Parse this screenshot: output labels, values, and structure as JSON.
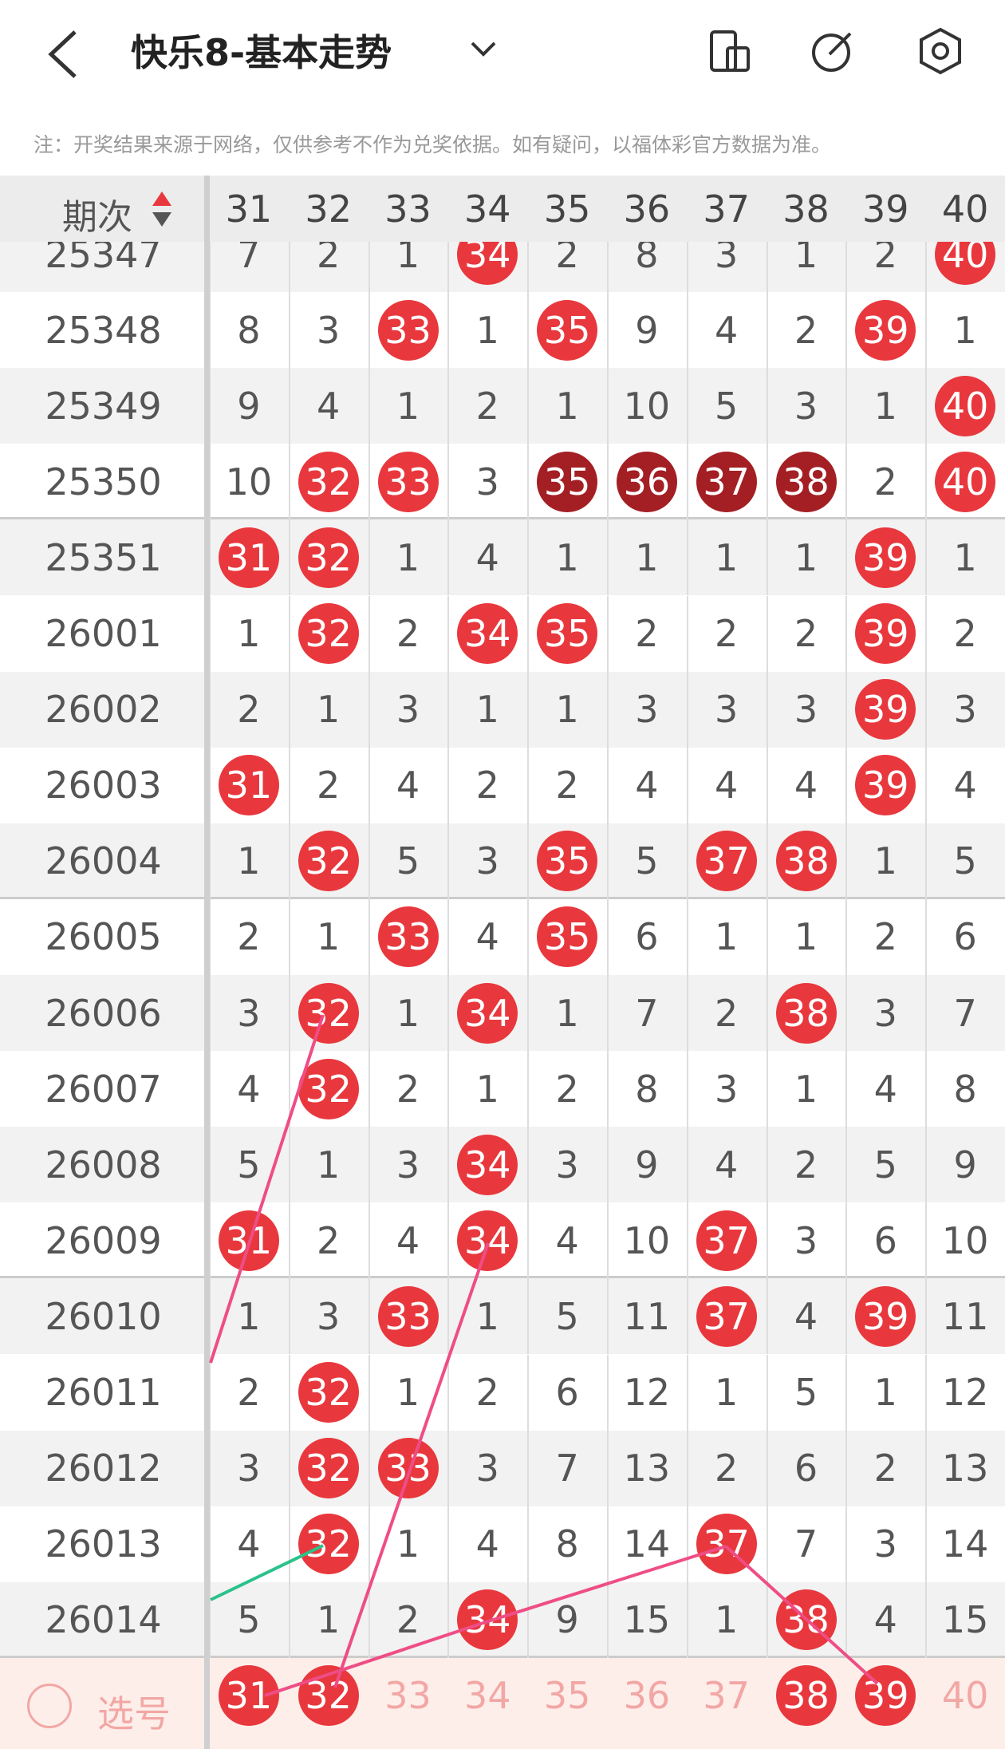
{
  "header": {
    "title": "快乐8-基本走势",
    "note": "注：开奖结果来源于网络，仅供参考不作为兑奖依据。如有疑问，以福体彩官方数据为准。"
  },
  "table": {
    "issue_header": "期次",
    "columns": [
      31,
      32,
      33,
      34,
      35,
      36,
      37,
      38,
      39,
      40
    ],
    "rows": [
      {
        "issue": "25347",
        "cells": [
          7,
          2,
          1,
          34,
          2,
          8,
          3,
          1,
          2,
          40
        ],
        "kinds": [
          "n",
          "n",
          "n",
          "hit",
          "n",
          "n",
          "n",
          "n",
          "n",
          "hit"
        ]
      },
      {
        "issue": "25348",
        "cells": [
          8,
          3,
          33,
          1,
          35,
          9,
          4,
          2,
          39,
          1
        ],
        "kinds": [
          "n",
          "n",
          "hit",
          "n",
          "hit",
          "n",
          "n",
          "n",
          "hit",
          "n"
        ]
      },
      {
        "issue": "25349",
        "cells": [
          9,
          4,
          1,
          2,
          1,
          10,
          5,
          3,
          1,
          40
        ],
        "kinds": [
          "n",
          "n",
          "n",
          "n",
          "n",
          "n",
          "n",
          "n",
          "n",
          "hit"
        ]
      },
      {
        "issue": "25350",
        "cells": [
          10,
          32,
          33,
          3,
          35,
          36,
          37,
          38,
          2,
          40
        ],
        "kinds": [
          "n",
          "hit",
          "hit",
          "n",
          "dark",
          "dark",
          "dark",
          "dark",
          "n",
          "hit"
        ]
      },
      {
        "issue": "25351",
        "cells": [
          31,
          32,
          1,
          4,
          1,
          1,
          1,
          1,
          39,
          1
        ],
        "kinds": [
          "hit",
          "hit",
          "n",
          "n",
          "n",
          "n",
          "n",
          "n",
          "hit",
          "n"
        ]
      },
      {
        "issue": "26001",
        "cells": [
          1,
          32,
          2,
          34,
          35,
          2,
          2,
          2,
          39,
          2
        ],
        "kinds": [
          "n",
          "hit",
          "n",
          "hit",
          "hit",
          "n",
          "n",
          "n",
          "hit",
          "n"
        ]
      },
      {
        "issue": "26002",
        "cells": [
          2,
          1,
          3,
          1,
          1,
          3,
          3,
          3,
          39,
          3
        ],
        "kinds": [
          "n",
          "n",
          "n",
          "n",
          "n",
          "n",
          "n",
          "n",
          "hit",
          "n"
        ]
      },
      {
        "issue": "26003",
        "cells": [
          31,
          2,
          4,
          2,
          2,
          4,
          4,
          4,
          39,
          4
        ],
        "kinds": [
          "hit",
          "n",
          "n",
          "n",
          "n",
          "n",
          "n",
          "n",
          "hit",
          "n"
        ]
      },
      {
        "issue": "26004",
        "cells": [
          1,
          32,
          5,
          3,
          35,
          5,
          37,
          38,
          1,
          5
        ],
        "kinds": [
          "n",
          "hit",
          "n",
          "n",
          "hit",
          "n",
          "hit",
          "hit",
          "n",
          "n"
        ]
      },
      {
        "issue": "26005",
        "cells": [
          2,
          1,
          33,
          4,
          35,
          6,
          1,
          1,
          2,
          6
        ],
        "kinds": [
          "n",
          "n",
          "hit",
          "n",
          "hit",
          "n",
          "n",
          "n",
          "n",
          "n"
        ]
      },
      {
        "issue": "26006",
        "cells": [
          3,
          32,
          1,
          34,
          1,
          7,
          2,
          38,
          3,
          7
        ],
        "kinds": [
          "n",
          "hit",
          "n",
          "hit",
          "n",
          "n",
          "n",
          "hit",
          "n",
          "n"
        ]
      },
      {
        "issue": "26007",
        "cells": [
          4,
          32,
          2,
          1,
          2,
          8,
          3,
          1,
          4,
          8
        ],
        "kinds": [
          "n",
          "hit",
          "n",
          "n",
          "n",
          "n",
          "n",
          "n",
          "n",
          "n"
        ]
      },
      {
        "issue": "26008",
        "cells": [
          5,
          1,
          3,
          34,
          3,
          9,
          4,
          2,
          5,
          9
        ],
        "kinds": [
          "n",
          "n",
          "n",
          "hit",
          "n",
          "n",
          "n",
          "n",
          "n",
          "n"
        ]
      },
      {
        "issue": "26009",
        "cells": [
          31,
          2,
          4,
          34,
          4,
          10,
          37,
          3,
          6,
          10
        ],
        "kinds": [
          "hit",
          "n",
          "n",
          "hit",
          "n",
          "n",
          "hit",
          "n",
          "n",
          "n"
        ]
      },
      {
        "issue": "26010",
        "cells": [
          1,
          3,
          33,
          1,
          5,
          11,
          37,
          4,
          39,
          11
        ],
        "kinds": [
          "n",
          "n",
          "hit",
          "n",
          "n",
          "n",
          "hit",
          "n",
          "hit",
          "n"
        ]
      },
      {
        "issue": "26011",
        "cells": [
          2,
          32,
          1,
          2,
          6,
          12,
          1,
          5,
          1,
          12
        ],
        "kinds": [
          "n",
          "hit",
          "n",
          "n",
          "n",
          "n",
          "n",
          "n",
          "n",
          "n"
        ]
      },
      {
        "issue": "26012",
        "cells": [
          3,
          32,
          33,
          3,
          7,
          13,
          2,
          6,
          2,
          13
        ],
        "kinds": [
          "n",
          "hit",
          "hit",
          "n",
          "n",
          "n",
          "n",
          "n",
          "n",
          "n"
        ]
      },
      {
        "issue": "26013",
        "cells": [
          4,
          32,
          1,
          4,
          8,
          14,
          37,
          7,
          3,
          14
        ],
        "kinds": [
          "n",
          "hit",
          "n",
          "n",
          "n",
          "n",
          "hit",
          "n",
          "n",
          "n"
        ]
      },
      {
        "issue": "26014",
        "cells": [
          5,
          1,
          2,
          34,
          9,
          15,
          1,
          38,
          4,
          15
        ],
        "kinds": [
          "n",
          "n",
          "n",
          "hit",
          "n",
          "n",
          "n",
          "hit",
          "n",
          "n"
        ]
      }
    ]
  },
  "select": {
    "label": "选号",
    "numbers": [
      31,
      32,
      33,
      34,
      35,
      36,
      37,
      38,
      39,
      40
    ],
    "selected": [
      true,
      true,
      false,
      false,
      false,
      false,
      false,
      true,
      true,
      false
    ]
  }
}
